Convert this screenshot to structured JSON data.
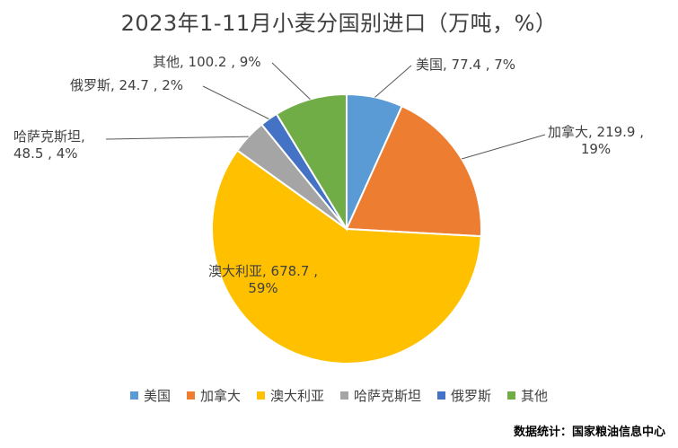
{
  "chart_data": {
    "type": "pie",
    "title": "2023年1-11月小麦分国别进口（万吨，%）",
    "slices": [
      {
        "name": "美国",
        "value": 77.4,
        "percent": "7%",
        "color": "#5B9BD5",
        "label_line1": "美国, 77.4 , 7%",
        "label_line2": ""
      },
      {
        "name": "加拿大",
        "value": 219.9,
        "percent": "19%",
        "color": "#ED7D31",
        "label_line1": "加拿大, 219.9 ,",
        "label_line2": "19%"
      },
      {
        "name": "澳大利亚",
        "value": 678.7,
        "percent": "59%",
        "color": "#FFC000",
        "label_line1": "澳大利亚, 678.7 ,",
        "label_line2": "59%"
      },
      {
        "name": "哈萨克斯坦",
        "value": 48.5,
        "percent": "4%",
        "color": "#A5A5A5",
        "label_line1": "哈萨克斯坦,",
        "label_line2": "48.5 , 4%"
      },
      {
        "name": "俄罗斯",
        "value": 24.7,
        "percent": "2%",
        "color": "#4472C4",
        "label_line1": "俄罗斯, 24.7 , 2%",
        "label_line2": ""
      },
      {
        "name": "其他",
        "value": 100.2,
        "percent": "9%",
        "color": "#70AD47",
        "label_line1": "其他, 100.2 , 9%",
        "label_line2": ""
      }
    ],
    "legend_position": "bottom"
  },
  "source_note": "数据统计：国家粮油信息中心"
}
